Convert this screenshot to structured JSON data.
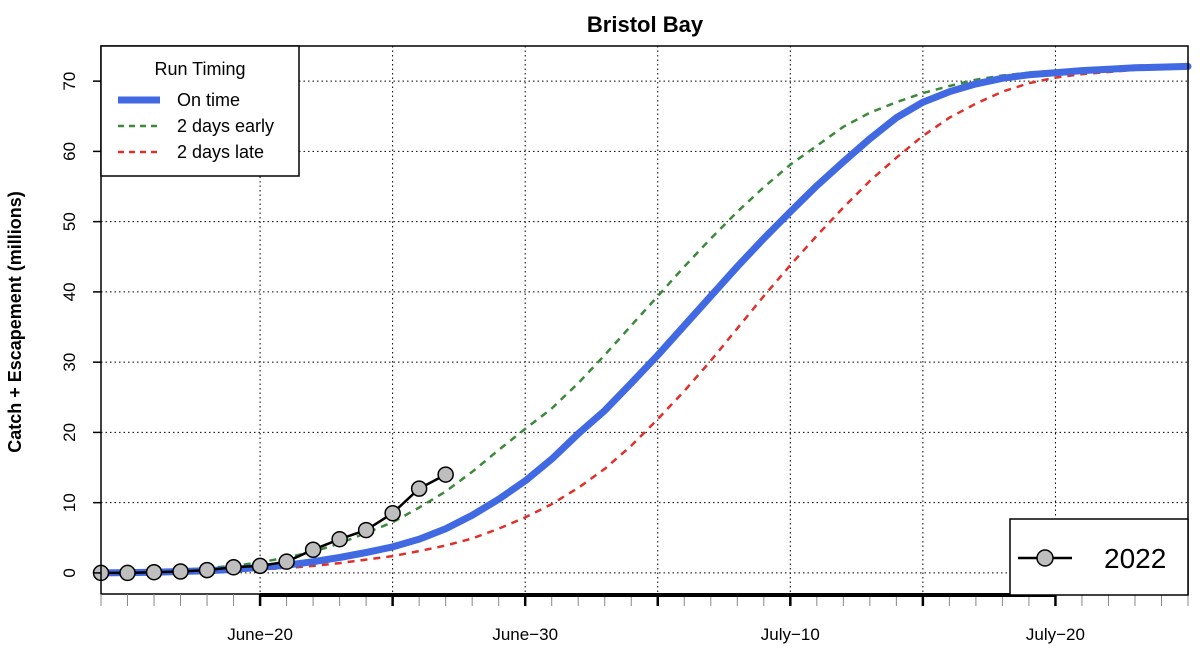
{
  "chart_data": {
    "type": "line",
    "title": "Bristol Bay",
    "ylabel": "Catch + Escapement (millions)",
    "xlabel": "",
    "ylim": [
      -3,
      75
    ],
    "xlim": [
      "June-14",
      "July-25"
    ],
    "yticks": [
      0,
      10,
      20,
      30,
      40,
      50,
      60,
      70
    ],
    "ytick_labels": [
      "0",
      "10",
      "20",
      "30",
      "40",
      "50",
      "60",
      "70"
    ],
    "xticks": [
      "June-20",
      "June-30",
      "July-10",
      "July-20"
    ],
    "xtick_labels": [
      "June−20",
      "June−30",
      "July−10",
      "July−20"
    ],
    "grid": true,
    "legend_run_timing": {
      "title": "Run Timing",
      "placement": "top-left",
      "entries": [
        "On time",
        "2 days early",
        "2 days late"
      ]
    },
    "legend_year": {
      "placement": "bottom-right",
      "entries": [
        "2022"
      ]
    },
    "x_dates": [
      "June-14",
      "June-15",
      "June-16",
      "June-17",
      "June-18",
      "June-19",
      "June-20",
      "June-21",
      "June-22",
      "June-23",
      "June-24",
      "June-25",
      "June-26",
      "June-27",
      "June-28",
      "June-29",
      "June-30",
      "July-1",
      "July-2",
      "July-3",
      "July-4",
      "July-5",
      "July-6",
      "July-7",
      "July-8",
      "July-9",
      "July-10",
      "July-11",
      "July-12",
      "July-13",
      "July-14",
      "July-15",
      "July-16",
      "July-17",
      "July-18",
      "July-19",
      "July-20",
      "July-21",
      "July-22",
      "July-23",
      "July-24",
      "July-25"
    ],
    "series": [
      {
        "name": "On time",
        "color": "#4169E1",
        "style": "solid",
        "values": [
          0.0,
          0.05,
          0.1,
          0.2,
          0.3,
          0.5,
          0.8,
          1.1,
          1.6,
          2.2,
          2.9,
          3.7,
          4.8,
          6.3,
          8.2,
          10.5,
          13.1,
          16.2,
          19.8,
          23.1,
          27.0,
          31.0,
          35.2,
          39.4,
          43.6,
          47.6,
          51.4,
          55.1,
          58.5,
          61.8,
          64.8,
          67.0,
          68.5,
          69.6,
          70.4,
          70.9,
          71.2,
          71.5,
          71.7,
          71.9,
          72.0,
          72.1
        ]
      },
      {
        "name": "2 days early",
        "color": "#3A8A3A",
        "style": "dashed",
        "values": [
          0.05,
          0.1,
          0.2,
          0.4,
          0.7,
          1.0,
          1.5,
          2.2,
          3.0,
          4.2,
          5.7,
          7.2,
          9.3,
          11.6,
          14.4,
          17.5,
          20.5,
          23.4,
          27.0,
          31.0,
          35.2,
          39.4,
          43.6,
          47.6,
          51.4,
          54.9,
          58.1,
          60.8,
          63.5,
          65.5,
          67.0,
          68.3,
          69.3,
          70.2,
          70.8,
          71.2,
          71.5,
          71.7,
          71.9,
          72.0,
          72.05,
          72.1
        ]
      },
      {
        "name": "2 days late",
        "color": "#E0302A",
        "style": "dashed",
        "values": [
          0.0,
          0.02,
          0.05,
          0.1,
          0.2,
          0.3,
          0.5,
          0.7,
          1.0,
          1.4,
          1.9,
          2.4,
          3.1,
          3.9,
          4.9,
          6.3,
          7.9,
          9.8,
          12.1,
          14.8,
          18.1,
          21.9,
          25.9,
          30.2,
          34.8,
          39.4,
          43.8,
          48.0,
          52.0,
          55.8,
          59.1,
          62.2,
          64.8,
          66.8,
          68.5,
          69.7,
          70.5,
          71.0,
          71.3,
          71.6,
          71.8,
          72.0
        ]
      },
      {
        "name": "2022",
        "color": "#000000",
        "marker": "circle",
        "marker_fill": "#BEBEBE",
        "values": [
          0.0,
          0.0,
          0.1,
          0.2,
          0.4,
          0.8,
          1.0,
          1.6,
          3.3,
          4.8,
          6.1,
          8.5,
          12.0,
          14.0
        ]
      }
    ]
  }
}
